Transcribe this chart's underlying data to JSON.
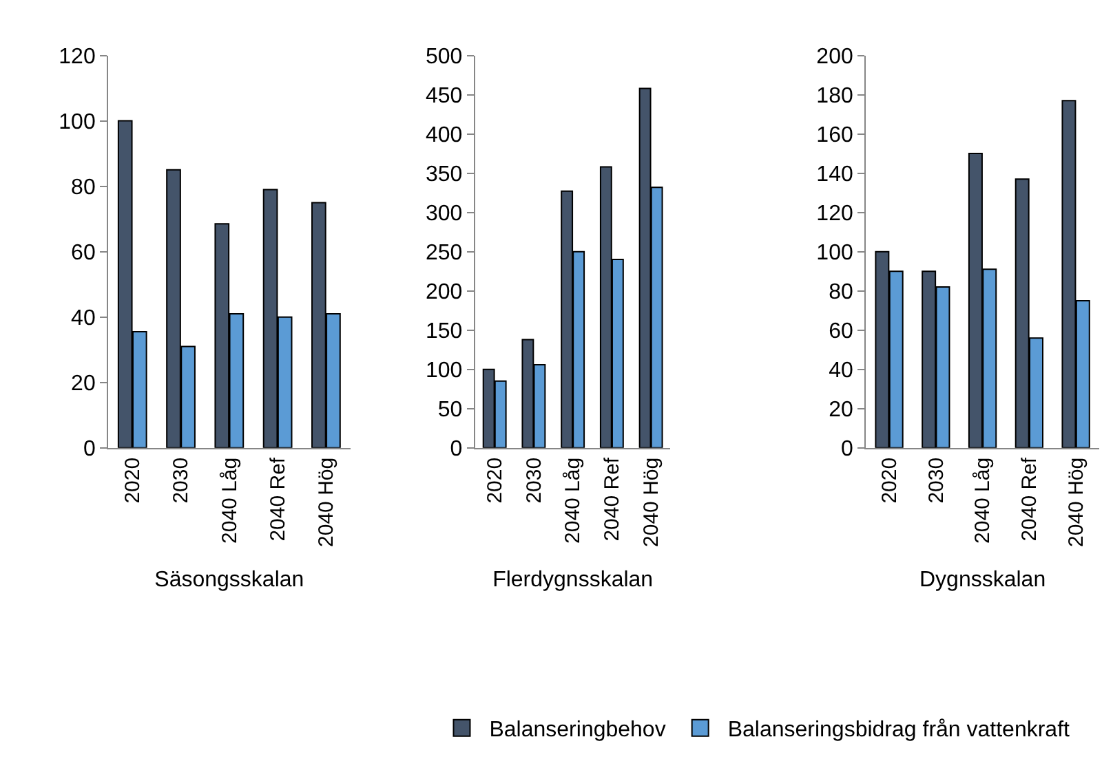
{
  "chart_data": [
    {
      "type": "bar",
      "xlabel": "Säsongsskalan",
      "categories": [
        "2020",
        "2030",
        "2040 Låg",
        "2040 Ref",
        "2040 Hög"
      ],
      "ylim": [
        0,
        120
      ],
      "yticks": [
        0,
        20,
        40,
        60,
        80,
        100,
        120
      ],
      "legend": "bottom",
      "grid": false,
      "series": [
        {
          "name": "Balanseringbehov",
          "color": "#44546a",
          "values": [
            100,
            85,
            68.5,
            79,
            75
          ]
        },
        {
          "name": "Balanseringsbidrag från vattenkraft",
          "color": "#5b9bd5",
          "values": [
            35.5,
            31,
            41,
            40,
            41
          ]
        }
      ]
    },
    {
      "type": "bar",
      "xlabel": "Flerdygnsskalan",
      "categories": [
        "2020",
        "2030",
        "2040 Låg",
        "2040 Ref",
        "2040 Hög"
      ],
      "ylim": [
        0,
        500
      ],
      "yticks": [
        0,
        50,
        100,
        150,
        200,
        250,
        300,
        350,
        400,
        450,
        500
      ],
      "legend": "bottom",
      "grid": false,
      "series": [
        {
          "name": "Balanseringbehov",
          "color": "#44546a",
          "values": [
            100,
            138,
            327,
            358,
            458
          ]
        },
        {
          "name": "Balanseringsbidrag från vattenkraft",
          "color": "#5b9bd5",
          "values": [
            85,
            106,
            250,
            240,
            332
          ]
        }
      ]
    },
    {
      "type": "bar",
      "xlabel": "Dygnsskalan",
      "categories": [
        "2020",
        "2030",
        "2040 Låg",
        "2040 Ref",
        "2040 Hög"
      ],
      "ylim": [
        0,
        200
      ],
      "yticks": [
        0,
        20,
        40,
        60,
        80,
        100,
        120,
        140,
        160,
        180,
        200
      ],
      "legend": "bottom",
      "grid": false,
      "series": [
        {
          "name": "Balanseringbehov",
          "color": "#44546a",
          "values": [
            100,
            90,
            150,
            137,
            177
          ]
        },
        {
          "name": "Balanseringsbidrag från vattenkraft",
          "color": "#5b9bd5",
          "values": [
            90,
            82,
            91,
            56,
            75
          ]
        }
      ]
    }
  ]
}
